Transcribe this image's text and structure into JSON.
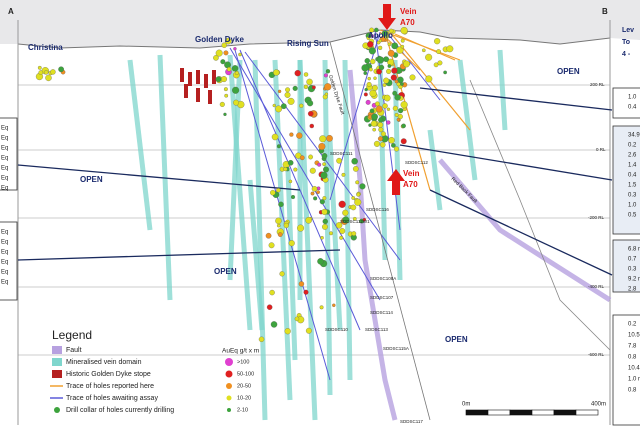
{
  "section_labels": {
    "left": "A",
    "right": "B"
  },
  "places": [
    "Christina",
    "Golden Dyke",
    "Rising Sun",
    "Apollo"
  ],
  "vein_top": [
    "Vein",
    "A70"
  ],
  "vein_mid": [
    "Vein",
    "A70"
  ],
  "open_labels": [
    "OPEN",
    "OPEN",
    "OPEN",
    "OPEN"
  ],
  "rl_labels": [
    "200 RL",
    "0 RL",
    "-200 RL",
    "-400 RL",
    "-600 RL"
  ],
  "faults": [
    "Golden Dyke Fault",
    "Red Back Fault"
  ],
  "holes": [
    "SDDSC111",
    "SDDSC112",
    "SDDSC116",
    "SDDSC112W1",
    "SDDSC108A",
    "SDDSC107",
    "SDDSC114",
    "SDDSC113",
    "SDDSC110",
    "SDDSC115A",
    "SDDSC117"
  ],
  "legend": {
    "title": "Legend",
    "items": [
      "Fault",
      "Mineralised vein domain",
      "Historic Golden Dyke stope",
      "Trace of holes reported here",
      "Trace of holes awaiting assay",
      "Drill collar of holes currently drilling"
    ]
  },
  "grade_legend": {
    "title": "AuEq g/t x m",
    "classes": [
      ">100",
      "50-100",
      "20-50",
      "10-20",
      "2-10"
    ]
  },
  "scale": {
    "start": "0m",
    "end": "400m"
  },
  "right_header": [
    "Lev",
    "To",
    "4 -"
  ],
  "right_boxes": [
    [
      "1.0",
      "0.4"
    ],
    [
      "34.9 m",
      "0.2",
      "2.6",
      "1.4",
      "0.4",
      "1.5",
      "0.3",
      "1.0",
      "0.5"
    ],
    [
      "6.8 m",
      "0.7",
      "0.3",
      "9.2 m",
      "2.8"
    ],
    [
      "0.2",
      "10.5",
      "7.8",
      "0.8",
      "10.4",
      "1.0 n",
      "0.8"
    ]
  ],
  "left_boxes": [
    [
      "Eq",
      "Eq",
      "Eq",
      "Eq",
      "Eq",
      "Eq",
      "Eq"
    ],
    [
      "Eq",
      "Eq",
      "Eq",
      "Eq",
      "Eq",
      "Eq"
    ]
  ]
}
